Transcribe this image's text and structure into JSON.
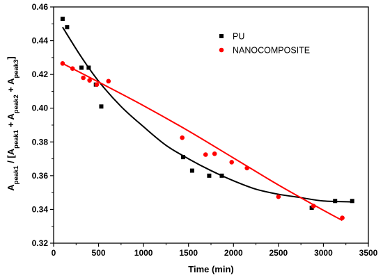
{
  "chart_data": {
    "type": "scatter",
    "xlabel": "Time (min)",
    "ylabel": {
      "parts": [
        {
          "text": "A",
          "sub": false
        },
        {
          "text": "peak1",
          "sub": true
        },
        {
          "text": " / [A",
          "sub": false
        },
        {
          "text": "peak1",
          "sub": true
        },
        {
          "text": " + A",
          "sub": false
        },
        {
          "text": "peak2",
          "sub": true
        },
        {
          "text": " + A",
          "sub": false
        },
        {
          "text": "peak3",
          "sub": true
        },
        {
          "text": "]",
          "sub": false
        }
      ]
    },
    "xlim": [
      0,
      3500
    ],
    "ylim": [
      0.32,
      0.46
    ],
    "xticks": [
      0,
      500,
      1000,
      1500,
      2000,
      2500,
      3000,
      3500
    ],
    "xtick_labels": [
      "0",
      "500",
      "1000",
      "1500",
      "2000",
      "2500",
      "3000",
      "3500"
    ],
    "yticks": [
      0.32,
      0.34,
      0.36,
      0.38,
      0.4,
      0.42,
      0.44,
      0.46
    ],
    "ytick_labels": [
      "0.32",
      "0.34",
      "0.36",
      "0.38",
      "0.40",
      "0.42",
      "0.44",
      "0.46"
    ],
    "grid": false,
    "legend_position": "top-right",
    "series": [
      {
        "name": "PU",
        "color": "#000000",
        "marker": "square",
        "x": [
          100,
          150,
          310,
          390,
          470,
          530,
          1440,
          1540,
          1730,
          1870,
          2870,
          3130,
          3320
        ],
        "y": [
          0.453,
          0.448,
          0.424,
          0.424,
          0.414,
          0.401,
          0.371,
          0.363,
          0.36,
          0.36,
          0.341,
          0.345,
          0.345
        ],
        "fit": {
          "type": "exponential-decay",
          "x": [
            100,
            300,
            500,
            750,
            1000,
            1250,
            1500,
            1750,
            2000,
            2250,
            2500,
            2750,
            3000,
            3320
          ],
          "y": [
            0.448,
            0.431,
            0.416,
            0.401,
            0.389,
            0.378,
            0.37,
            0.363,
            0.357,
            0.352,
            0.349,
            0.347,
            0.345,
            0.3445
          ]
        }
      },
      {
        "name": "NANOCOMPOSITE",
        "color": "#ff0000",
        "marker": "circle",
        "x": [
          100,
          210,
          330,
          400,
          480,
          610,
          1430,
          1690,
          1790,
          1980,
          2150,
          2500,
          2890,
          3210
        ],
        "y": [
          0.4265,
          0.4235,
          0.418,
          0.4165,
          0.414,
          0.416,
          0.3825,
          0.3725,
          0.373,
          0.368,
          0.3645,
          0.3475,
          0.342,
          0.335
        ],
        "fit": {
          "type": "polynomial",
          "x": [
            100,
            500,
            1000,
            1500,
            2000,
            2500,
            3000,
            3210
          ],
          "y": [
            0.4265,
            0.4155,
            0.4015,
            0.3865,
            0.3705,
            0.3545,
            0.3395,
            0.3335
          ]
        }
      }
    ]
  }
}
